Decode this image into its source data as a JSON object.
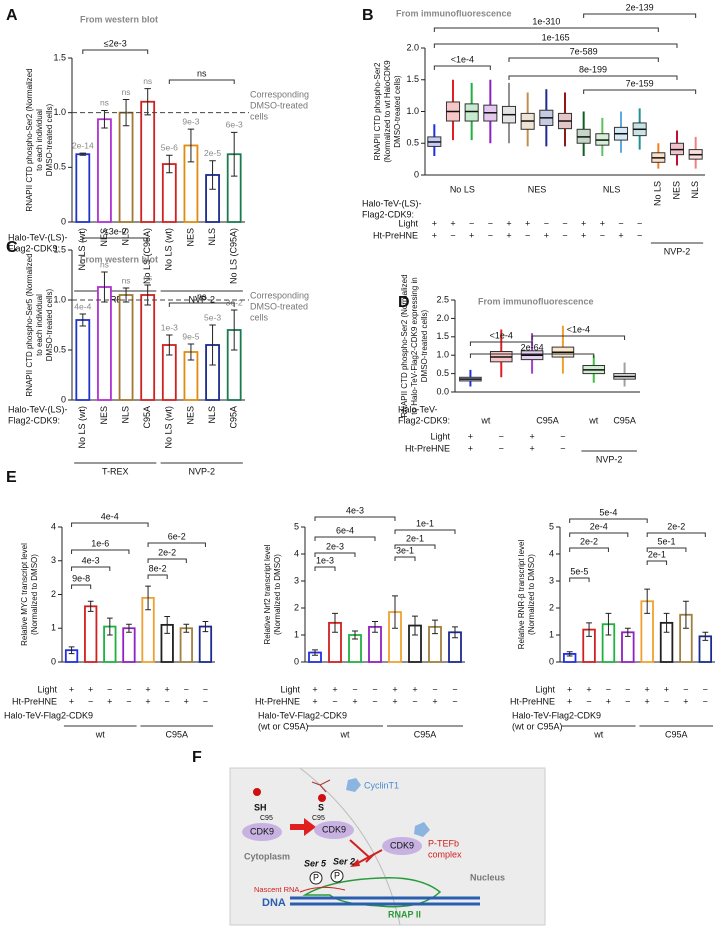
{
  "chart_data": [
    {
      "panel": "A",
      "type": "bar",
      "title": "From western blot",
      "ylabel": [
        "RNAPII CTD phospho-Ser2 (Normalized",
        "to each individual",
        "DMSO-treated cells)"
      ],
      "categories": [
        "No LS (wt)",
        "NES",
        "NLS",
        "No LS (C95A)",
        "No LS (wt)",
        "NES",
        "NLS",
        "No LS (C95A)"
      ],
      "values": [
        0.62,
        0.94,
        1.0,
        1.1,
        0.53,
        0.7,
        0.43,
        0.62
      ],
      "errors": [
        0.01,
        0.08,
        0.12,
        0.12,
        0.08,
        0.15,
        0.13,
        0.2
      ],
      "colors": [
        "#2233cc",
        "#b030d0",
        "#a07830",
        "#d02020",
        "#d02020",
        "#e08a10",
        "#1a2a90",
        "#1a7a50"
      ],
      "bar_annotations": [
        "2e-14",
        "ns",
        "ns",
        "ns",
        "5e-6",
        "9e-3",
        "2e-5",
        "6e-3"
      ],
      "brackets": [
        "≤2e-3",
        "ns"
      ],
      "reference_line": {
        "value": 1,
        "label": [
          "Corresponding",
          "DMSO-treated",
          "cells"
        ]
      },
      "ylim": [
        0,
        1.5
      ],
      "yticks": [
        0,
        0.5,
        {
          "value": 1,
          "label": "1.0"
        },
        1.5
      ],
      "row_label": [
        "Halo-TeV-(LS)-",
        "Flag2-CDK9:"
      ],
      "groups": [
        "T-REX",
        "NVP-2"
      ]
    },
    {
      "panel": "B",
      "type": "box",
      "title": "From immunofluorescence",
      "ylabel": [
        "RNAPII CTD phospho-Ser2",
        "(Normalized to wt HaloCDK9",
        "DMSO-treated cells)"
      ],
      "categories": [
        null,
        null,
        null,
        null,
        null,
        null,
        null,
        null,
        null,
        null,
        null,
        null,
        "No LS",
        "NES",
        "NLS"
      ],
      "q1": [
        0.45,
        0.85,
        0.85,
        0.85,
        0.82,
        0.72,
        0.78,
        0.73,
        0.5,
        0.47,
        0.55,
        0.62,
        0.2,
        0.32,
        0.25
      ],
      "median": [
        0.52,
        1.0,
        1.0,
        0.98,
        0.95,
        0.85,
        0.9,
        0.85,
        0.6,
        0.55,
        0.65,
        0.72,
        0.27,
        0.4,
        0.32
      ],
      "q3": [
        0.6,
        1.15,
        1.12,
        1.1,
        1.08,
        0.97,
        1.02,
        0.97,
        0.72,
        0.65,
        0.75,
        0.82,
        0.35,
        0.5,
        0.4
      ],
      "whisker_low": [
        0.3,
        0.55,
        0.55,
        0.5,
        0.5,
        0.45,
        0.45,
        0.45,
        0.3,
        0.3,
        0.35,
        0.4,
        0.1,
        0.15,
        0.1
      ],
      "whisker_high": [
        0.8,
        1.5,
        1.45,
        1.5,
        1.45,
        1.3,
        1.35,
        1.3,
        1.0,
        0.9,
        1.0,
        1.05,
        0.5,
        0.7,
        0.6
      ],
      "colors": [
        "#2030e0",
        "#e02020",
        "#20b040",
        "#9020c0",
        "#909090",
        "#c09050",
        "#202a90",
        "#901818",
        "#106020",
        "#60c060",
        "#60a8e0",
        "#209090",
        "#f08020",
        "#c01030",
        "#f08080"
      ],
      "brackets": [
        "<1e-4",
        "1e-310",
        "1e-165",
        "7e-589",
        "2e-139",
        "8e-199",
        "7e-159"
      ],
      "ylim": [
        0,
        2
      ],
      "yticks": [
        0,
        0.5,
        {
          "value": 1,
          "label": "1.0"
        },
        1.5,
        {
          "value": 2,
          "label": "2.0"
        }
      ],
      "row_label": [
        "Halo-TeV-(LS)-",
        "Flag2-CDK9:"
      ],
      "groups": [
        "No LS",
        "NES",
        "NLS",
        "NVP-2"
      ],
      "rows": [
        {
          "label": "Light",
          "values": [
            "+",
            "+",
            "−",
            "−",
            "+",
            "+",
            "−",
            "−",
            "+",
            "+",
            "−",
            "−"
          ]
        },
        {
          "label": "Ht-PreHNE",
          "values": [
            "+",
            "−",
            "+",
            "−",
            "+",
            "−",
            "+",
            "−",
            "+",
            "−",
            "+",
            "−"
          ]
        }
      ]
    },
    {
      "panel": "C",
      "type": "bar",
      "title": "From western blot",
      "ylabel": [
        "RNAPII CTD phospho-Ser5 (Normalized",
        "to each individual",
        "DMSO-treated cells)"
      ],
      "categories": [
        "No LS (wt)",
        "NES",
        "NLS",
        "C95A",
        "No LS (wt)",
        "NES",
        "NLS",
        "C95A"
      ],
      "values": [
        0.8,
        1.13,
        1.05,
        1.05,
        0.55,
        0.48,
        0.55,
        0.7
      ],
      "errors": [
        0.06,
        0.15,
        0.07,
        0.1,
        0.1,
        0.08,
        0.2,
        0.2
      ],
      "colors": [
        "#2233cc",
        "#b030d0",
        "#a07830",
        "#d02020",
        "#d02020",
        "#e08a10",
        "#1a2a90",
        "#1a7a50"
      ],
      "bar_annotations": [
        "4e-4",
        "ns",
        "ns",
        "ns",
        "1e-3",
        "9e-5",
        "5e-3",
        "3e-2"
      ],
      "brackets": [
        "≤3e-2",
        "ns"
      ],
      "reference_line": {
        "value": 1,
        "label": [
          "Corresponding",
          "DMSO-treated",
          "cells"
        ]
      },
      "ylim": [
        0,
        1.5
      ],
      "yticks": [
        0,
        0.5,
        {
          "value": 1,
          "label": "1.0"
        },
        1.5
      ],
      "row_label": [
        "Halo-TeV-(LS)-",
        "Flag2-CDK9:"
      ],
      "groups": [
        "T-REX",
        "NVP-2"
      ]
    },
    {
      "panel": "D",
      "type": "box",
      "title": "From immunofluorescence",
      "ylabel": [
        "RNAPII CTD phospho-Ser2 (Normalized",
        "to Halo-TeV-Flag2-CDK9 expressing in",
        "DMSO-treated cells)"
      ],
      "q1": [
        0.3,
        0.82,
        0.88,
        0.95,
        0.5,
        0.35
      ],
      "median": [
        0.35,
        0.95,
        1.0,
        1.08,
        0.6,
        0.42
      ],
      "q3": [
        0.4,
        1.1,
        1.12,
        1.22,
        0.72,
        0.5
      ],
      "whisker_low": [
        0.15,
        0.4,
        0.5,
        0.5,
        0.25,
        0.15
      ],
      "whisker_high": [
        0.6,
        1.7,
        1.6,
        1.8,
        1.0,
        0.8
      ],
      "colors": [
        "#2030e0",
        "#e02020",
        "#a040d0",
        "#f0a030",
        "#40c040",
        "#a0a0a0"
      ],
      "brackets": [
        "<1e-4",
        "<1e-4",
        "2e-64"
      ],
      "ylim": [
        0,
        2.5
      ],
      "yticks": [
        {
          "value": 0,
          "label": "0.0"
        },
        0.5,
        {
          "value": 1,
          "label": "1.0"
        },
        1.5,
        {
          "value": 2,
          "label": "2.0"
        },
        2.5
      ],
      "row_label": [
        "Halo-TeV-",
        "Flag2-CDK9:"
      ],
      "groups": [
        "wt",
        "C95A",
        "wt",
        "C95A",
        "NVP-2"
      ],
      "rows": [
        {
          "label": "Light",
          "values": [
            "+",
            "−",
            "+",
            "−"
          ]
        },
        {
          "label": "Ht-PreHNE",
          "values": [
            "+",
            "−",
            "+",
            "−"
          ]
        }
      ]
    },
    {
      "panel": "E",
      "type": "bar",
      "ylabel": [
        "Relative MYC transcript level",
        "(Normalized to DMSO)"
      ],
      "values": [
        0.35,
        1.65,
        1.05,
        1.0,
        1.9,
        1.1,
        1.0,
        1.05
      ],
      "errors": [
        0.1,
        0.15,
        0.25,
        0.12,
        0.35,
        0.25,
        0.12,
        0.15
      ],
      "colors": [
        "#2030e0",
        "#d02020",
        "#20b040",
        "#9020c0",
        "#f0a030",
        "#202020",
        "#a08040",
        "#1a2a90"
      ],
      "brackets": [
        "4e-4",
        "4e-3",
        "1e-6",
        "9e-8",
        "6e-2",
        "2e-2",
        "8e-2"
      ],
      "ylim": [
        0,
        4
      ],
      "yticks": [
        0,
        1,
        2,
        3,
        4
      ],
      "row_label": [
        "Halo-TeV-Flag2-CDK9"
      ],
      "groups": [
        "wt",
        "C95A"
      ],
      "rows": [
        {
          "label": "Light",
          "values": [
            "+",
            "+",
            "−",
            "−",
            "+",
            "+",
            "−",
            "−"
          ]
        },
        {
          "label": "Ht-PreHNE",
          "values": [
            "+",
            "−",
            "+",
            "−",
            "+",
            "−",
            "+",
            "−"
          ]
        }
      ]
    },
    {
      "type": "bar",
      "ylabel": [
        "Relative Nrf2 transcript level",
        "(Normalized to DMSO)"
      ],
      "values": [
        0.35,
        1.45,
        1.0,
        1.3,
        1.85,
        1.35,
        1.3,
        1.1
      ],
      "errors": [
        0.1,
        0.35,
        0.15,
        0.2,
        0.6,
        0.35,
        0.25,
        0.2
      ],
      "colors": [
        "#2030e0",
        "#d02020",
        "#20b040",
        "#9020c0",
        "#f0a030",
        "#202020",
        "#a08040",
        "#1a2a90"
      ],
      "brackets": [
        "4e-3",
        "6e-4",
        "2e-3",
        "1e-3",
        "1e-1",
        "2e-1",
        "3e-1"
      ],
      "ylim": [
        0,
        5
      ],
      "yticks": [
        0,
        1,
        2,
        3,
        4,
        5
      ],
      "row_label": [
        "Halo-TeV-Flag2-CDK9",
        "(wt or C95A)"
      ],
      "groups": [
        "wt",
        "C95A"
      ],
      "rows": [
        {
          "label": "Light",
          "values": [
            "+",
            "+",
            "−",
            "−",
            "+",
            "+",
            "−",
            "−"
          ]
        },
        {
          "label": "Ht-PreHNE",
          "values": [
            "+",
            "−",
            "+",
            "−",
            "+",
            "−",
            "+",
            "−"
          ]
        }
      ]
    },
    {
      "type": "bar",
      "ylabel": [
        "Relative RNR-β transcript level",
        "(Normalized to DMSO)"
      ],
      "values": [
        0.3,
        1.2,
        1.4,
        1.1,
        2.25,
        1.45,
        1.75,
        0.95
      ],
      "errors": [
        0.08,
        0.25,
        0.4,
        0.15,
        0.45,
        0.35,
        0.5,
        0.15
      ],
      "colors": [
        "#2030e0",
        "#d02020",
        "#20b040",
        "#9020c0",
        "#f0a030",
        "#202020",
        "#a08040",
        "#1a2a90"
      ],
      "brackets": [
        "5e-4",
        "2e-4",
        "2e-2",
        "5e-5",
        "2e-2",
        "5e-1",
        "2e-1"
      ],
      "ylim": [
        0,
        5
      ],
      "yticks": [
        0,
        1,
        2,
        3,
        4,
        5
      ],
      "row_label": [
        "Halo-TeV-Flag2-CDK9",
        "(wt or C95A)"
      ],
      "groups": [
        "wt",
        "C95A"
      ],
      "rows": [
        {
          "label": "Light",
          "values": [
            "+",
            "+",
            "−",
            "−",
            "+",
            "+",
            "−",
            "−"
          ]
        },
        {
          "label": "Ht-PreHNE",
          "values": [
            "+",
            "−",
            "+",
            "−",
            "+",
            "−",
            "+",
            "−"
          ]
        }
      ]
    }
  ],
  "diagram": {
    "panel": "F",
    "labels": [
      "CyclinT1",
      "SH",
      "C95",
      "CDK9",
      "S",
      "C95",
      "CDK9",
      "Cytoplasm",
      "Ser 5",
      "Ser 2",
      "P",
      "P",
      "CDK9",
      "P-TEFb",
      "complex",
      "Nascent RNA",
      "DNA",
      "RNAP II",
      "Nucleus"
    ]
  }
}
